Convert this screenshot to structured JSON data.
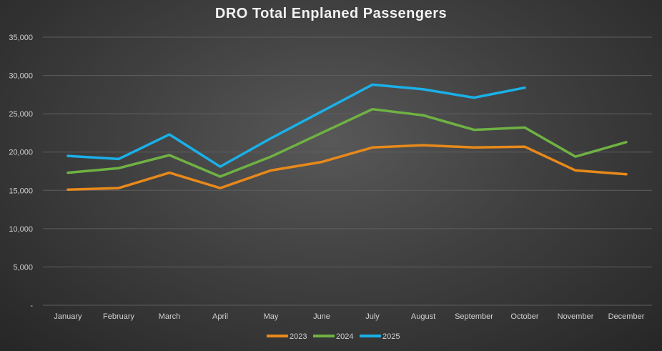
{
  "chart_data": {
    "type": "line",
    "title": "DRO Total Enplaned Passengers",
    "xlabel": "",
    "ylabel": "",
    "categories": [
      "January",
      "February",
      "March",
      "April",
      "May",
      "June",
      "July",
      "August",
      "September",
      "October",
      "November",
      "December"
    ],
    "ylim": [
      0,
      35000
    ],
    "yticks": [
      0,
      5000,
      10000,
      15000,
      20000,
      25000,
      30000,
      35000
    ],
    "ytick_labels": [
      "-",
      "5,000",
      "10,000",
      "15,000",
      "20,000",
      "25,000",
      "30,000",
      "35,000"
    ],
    "grid": true,
    "legend_position": "bottom",
    "series": [
      {
        "name": "2023",
        "color": "#e8891a",
        "values": [
          15100,
          15300,
          17300,
          15300,
          17600,
          18700,
          20600,
          20900,
          20600,
          20700,
          17600,
          17100
        ]
      },
      {
        "name": "2024",
        "color": "#6fb243",
        "values": [
          17300,
          17900,
          19600,
          16800,
          19400,
          22500,
          25600,
          24800,
          22900,
          23200,
          19400,
          21300
        ]
      },
      {
        "name": "2025",
        "color": "#1ab0e8",
        "values": [
          19500,
          19100,
          22300,
          18100,
          21800,
          25300,
          28800,
          28200,
          27100,
          28400,
          null,
          null
        ]
      }
    ]
  }
}
